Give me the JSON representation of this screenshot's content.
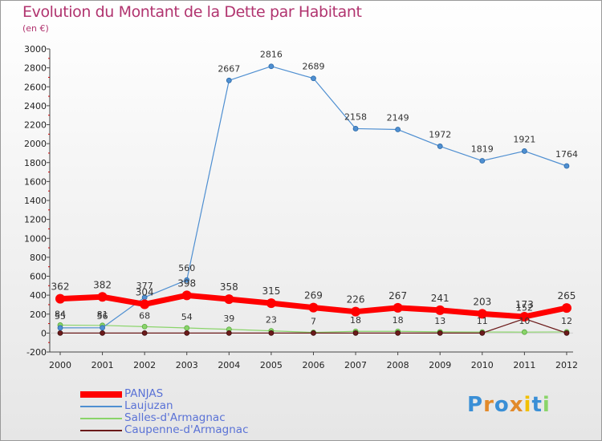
{
  "chart_data": {
    "type": "line",
    "title": "Evolution du Montant de la Dette par Habitant",
    "subtitle": "(en €)",
    "x": [
      "2000",
      "2001",
      "2002",
      "2003",
      "2004",
      "2005",
      "2006",
      "2007",
      "2008",
      "2009",
      "2010",
      "2011",
      "2012"
    ],
    "ylim": [
      -200,
      3000
    ],
    "yticks": [
      -200,
      0,
      200,
      400,
      600,
      800,
      1000,
      1200,
      1400,
      1600,
      1800,
      2000,
      2200,
      2400,
      2600,
      2800,
      3000
    ],
    "grid": false,
    "legend_position": "bottom-left",
    "series": [
      {
        "name": "PANJAS",
        "color": "#ff0000",
        "values": [
          362,
          382,
          304,
          398,
          358,
          315,
          269,
          226,
          267,
          241,
          203,
          173,
          265
        ],
        "labels": [
          "362",
          "382",
          "304",
          "398",
          "358",
          "315",
          "269",
          "226",
          "267",
          "241",
          "203",
          "173",
          "265"
        ]
      },
      {
        "name": "Laujuzan",
        "color": "#4f8fd1",
        "values": [
          55,
          56,
          377,
          560,
          2667,
          2816,
          2689,
          2158,
          2149,
          1972,
          1819,
          1921,
          1764
        ],
        "labels": [
          "55",
          "56",
          "377",
          "560",
          "2667",
          "2816",
          "2689",
          "2158",
          "2149",
          "1972",
          "1819",
          "1921",
          "1764"
        ]
      },
      {
        "name": "Salles-d'Armagnac",
        "color": "#8ad46a",
        "values": [
          84,
          81,
          68,
          54,
          39,
          23,
          7,
          18,
          18,
          13,
          11,
          10,
          12
        ],
        "labels": [
          "84",
          "81",
          "68",
          "54",
          "39",
          "23",
          "7",
          "18",
          "18",
          "13",
          "11",
          "10",
          "12"
        ]
      },
      {
        "name": "Caupenne-d'Armagnac",
        "color": "#6b1a1a",
        "values": [
          0,
          0,
          0,
          0,
          0,
          0,
          0,
          0,
          0,
          0,
          0,
          152,
          0
        ],
        "labels": [
          "0",
          "0",
          "0",
          "0",
          "0",
          "0",
          "0",
          "0",
          "0",
          "0",
          "0",
          "152",
          "0"
        ]
      }
    ]
  },
  "logo": {
    "letters": [
      "P",
      "r",
      "o",
      "x",
      "i",
      "t",
      "i"
    ],
    "colors": [
      "#3a8fd6",
      "#e28a2a",
      "#3a8fd6",
      "#e28a2a",
      "#f2c000",
      "#3a8fd6",
      "#8ad46a"
    ]
  }
}
